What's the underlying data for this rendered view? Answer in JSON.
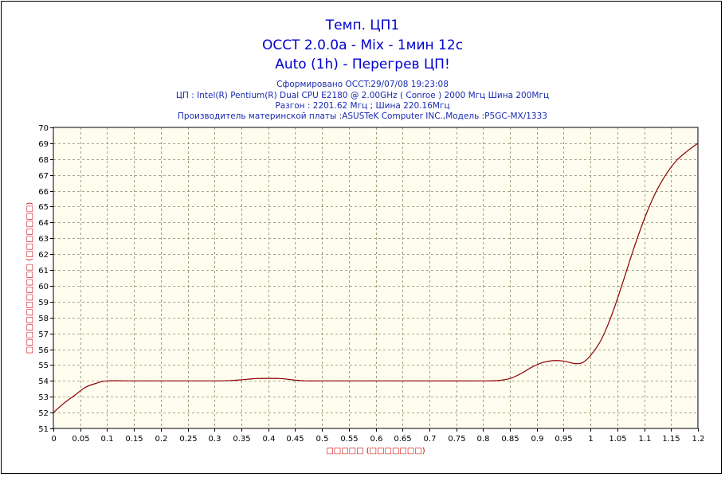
{
  "titles": {
    "line1": "Темп. ЦП1",
    "line2": "OCCT 2.0.0a - Mix - 1мин 12с",
    "line3": "Auto (1h) - Перегрев ЦП!"
  },
  "info": {
    "line1": "Сформировано OCCT:29/07/08 19:23:08",
    "line2": "ЦП : Intel(R) Pentium(R) Dual CPU E2180 @ 2.00GHz ( Conroe ) 2000 Мгц Шина 200Мгц",
    "line3": "Разгон : 2201.62 Мгц ; Шина 220.16Мгц",
    "line4": "Производитель материнской платы :ASUSTeK Computer INC.,Модель :P5GC-MX/1333"
  },
  "chart_data": {
    "type": "line",
    "xlabel": "□□□□□ (□□□□□□□)",
    "ylabel": "□□□□□□□□□□□□ (□□□□□□□)",
    "xlim": [
      0,
      1.2
    ],
    "ylim": [
      51,
      70
    ],
    "x_ticks": [
      "0",
      "0.05",
      "0.1",
      "0.15",
      "0.2",
      "0.25",
      "0.3",
      "0.35",
      "0.4",
      "0.45",
      "0.5",
      "0.55",
      "0.6",
      "0.65",
      "0.7",
      "0.75",
      "0.8",
      "0.85",
      "0.9",
      "0.95",
      "1",
      "1.05",
      "1.1",
      "1.15",
      "1.2"
    ],
    "y_ticks": [
      "51",
      "52",
      "53",
      "54",
      "55",
      "56",
      "57",
      "58",
      "59",
      "60",
      "61",
      "62",
      "63",
      "64",
      "65",
      "66",
      "67",
      "68",
      "69",
      "70"
    ],
    "grid": true,
    "colors": {
      "line": "#8b0000",
      "plot_background": "#fffdf0",
      "grid": "#8a8a60"
    },
    "series": [
      {
        "points": [
          [
            0,
            52.0
          ],
          [
            0.02,
            52.6
          ],
          [
            0.04,
            53.1
          ],
          [
            0.06,
            53.6
          ],
          [
            0.08,
            53.85
          ],
          [
            0.1,
            54.0
          ],
          [
            0.15,
            54.0
          ],
          [
            0.2,
            54.0
          ],
          [
            0.25,
            54.0
          ],
          [
            0.3,
            54.0
          ],
          [
            0.33,
            54.02
          ],
          [
            0.36,
            54.1
          ],
          [
            0.38,
            54.15
          ],
          [
            0.42,
            54.15
          ],
          [
            0.45,
            54.05
          ],
          [
            0.47,
            54.0
          ],
          [
            0.5,
            54.0
          ],
          [
            0.6,
            54.0
          ],
          [
            0.7,
            54.0
          ],
          [
            0.8,
            54.0
          ],
          [
            0.83,
            54.03
          ],
          [
            0.85,
            54.15
          ],
          [
            0.87,
            54.45
          ],
          [
            0.89,
            54.85
          ],
          [
            0.91,
            55.15
          ],
          [
            0.93,
            55.28
          ],
          [
            0.95,
            55.25
          ],
          [
            0.97,
            55.1
          ],
          [
            0.985,
            55.15
          ],
          [
            1.0,
            55.6
          ],
          [
            1.02,
            56.6
          ],
          [
            1.04,
            58.2
          ],
          [
            1.06,
            60.2
          ],
          [
            1.08,
            62.3
          ],
          [
            1.1,
            64.2
          ],
          [
            1.12,
            65.8
          ],
          [
            1.14,
            67.0
          ],
          [
            1.16,
            67.9
          ],
          [
            1.18,
            68.5
          ],
          [
            1.2,
            69.0
          ]
        ]
      }
    ]
  }
}
